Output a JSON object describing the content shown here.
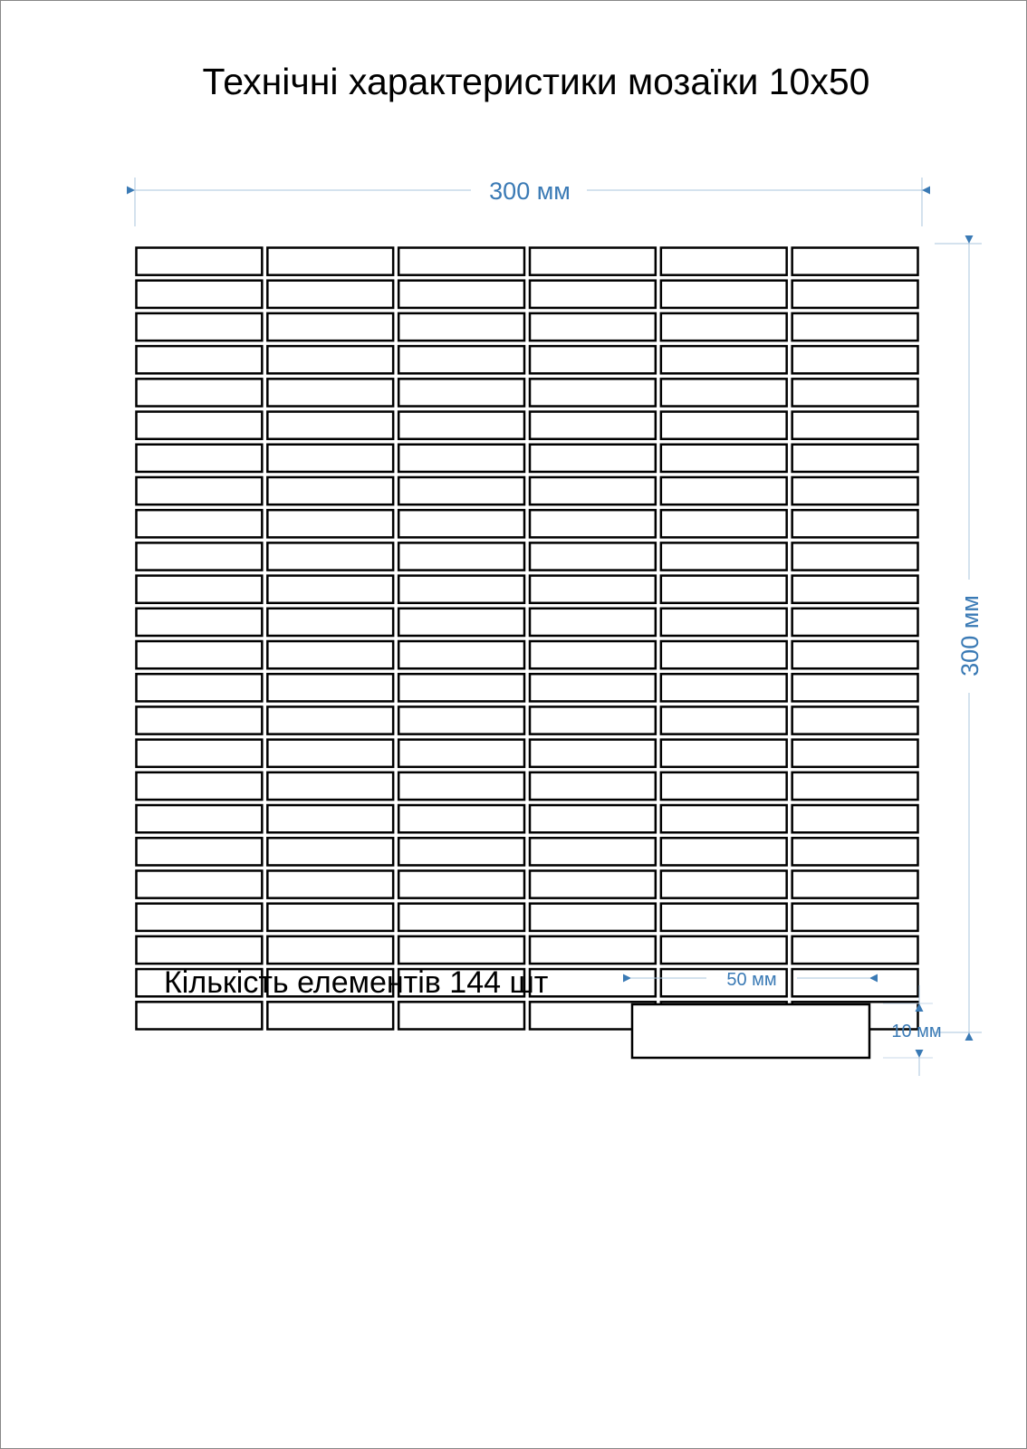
{
  "title": "Технічні характеристики мозаїки 10x50",
  "sheet": {
    "width_label": "300 мм",
    "height_label": "300 мм",
    "columns": 6,
    "rows": 24
  },
  "element_count_label": "Кількість елементів 144 шт",
  "element": {
    "width_label": "50 мм",
    "height_label": "10 мм"
  },
  "colors": {
    "dimension": "#3a7ab5",
    "tile_outline": "#000000"
  }
}
